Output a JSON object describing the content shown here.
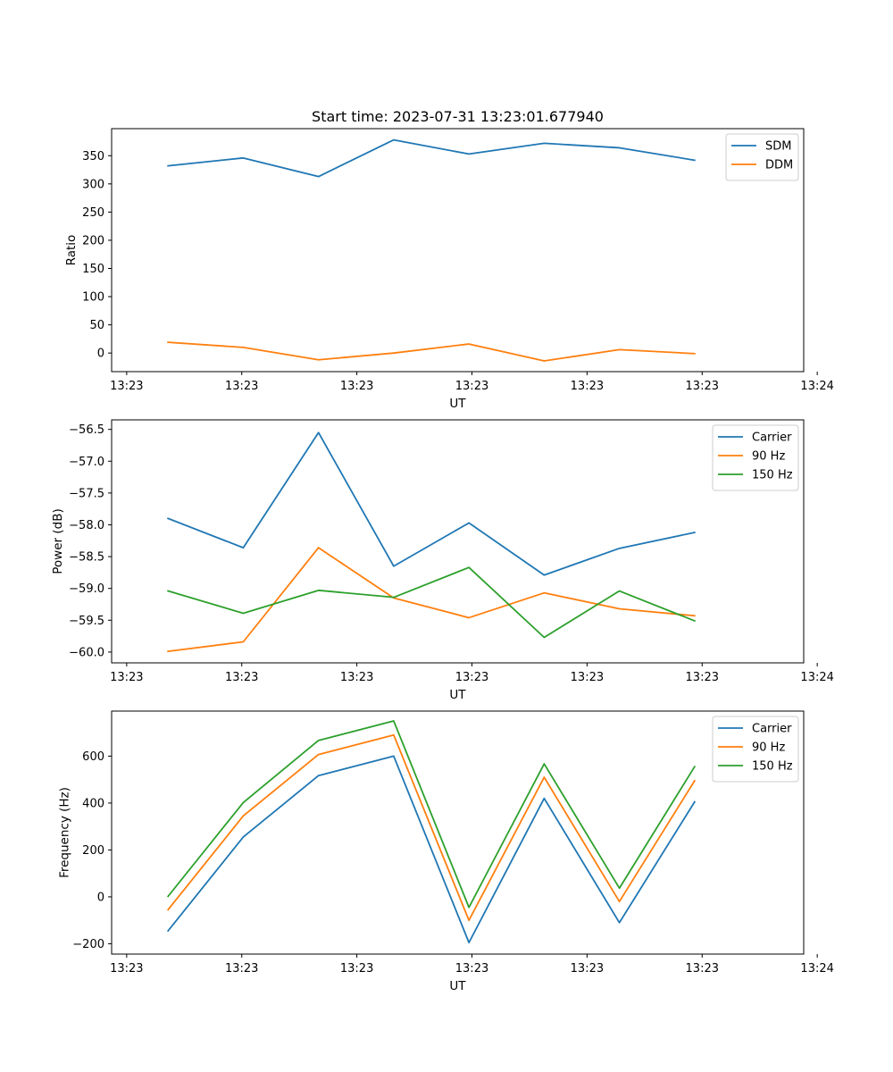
{
  "figure": {
    "title": "Start time: 2023-07-31 13:23:01.677940"
  },
  "chart_data": [
    {
      "type": "line",
      "xlabel": "UT",
      "ylabel": "Ratio",
      "x": [
        1,
        2,
        3,
        4,
        5,
        6,
        7,
        8
      ],
      "xlim": [
        0.25,
        9.45
      ],
      "x_ticks": [
        0.45,
        1.98,
        3.51,
        5.04,
        6.57,
        8.1,
        9.63
      ],
      "x_tick_labels": [
        "13:23",
        "13:23",
        "13:23",
        "13:23",
        "13:23",
        "13:23",
        "13:24"
      ],
      "ylim": [
        -33,
        398
      ],
      "y_ticks": [
        0,
        50,
        100,
        150,
        200,
        250,
        300,
        350
      ],
      "y_tick_labels": [
        "0",
        "50",
        "100",
        "150",
        "200",
        "250",
        "300",
        "350"
      ],
      "legend_position": "top-right",
      "series": [
        {
          "name": "SDM",
          "color": "#1f77b4",
          "values": [
            332,
            346,
            313,
            378,
            353,
            372,
            364,
            342
          ]
        },
        {
          "name": "DDM",
          "color": "#ff7f0e",
          "values": [
            19,
            10,
            -12,
            0,
            16,
            -14,
            6,
            -1
          ]
        }
      ]
    },
    {
      "type": "line",
      "xlabel": "UT",
      "ylabel": "Power (dB)",
      "x": [
        1,
        2,
        3,
        4,
        5,
        6,
        7,
        8
      ],
      "xlim": [
        0.25,
        9.45
      ],
      "x_ticks": [
        0.45,
        1.98,
        3.51,
        5.04,
        6.57,
        8.1,
        9.63
      ],
      "x_tick_labels": [
        "13:23",
        "13:23",
        "13:23",
        "13:23",
        "13:23",
        "13:23",
        "13:24"
      ],
      "ylim": [
        -60.17,
        -56.35
      ],
      "y_ticks": [
        -60.0,
        -59.5,
        -59.0,
        -58.5,
        -58.0,
        -57.5,
        -57.0,
        -56.5
      ],
      "y_tick_labels": [
        "−60.0",
        "−59.5",
        "−59.0",
        "−58.5",
        "−58.0",
        "−57.5",
        "−57.0",
        "−56.5"
      ],
      "legend_position": "top-right",
      "series": [
        {
          "name": "Carrier",
          "color": "#1f77b4",
          "values": [
            -57.9,
            -58.36,
            -56.55,
            -58.65,
            -57.97,
            -58.79,
            -58.37,
            -58.12
          ]
        },
        {
          "name": "90 Hz",
          "color": "#ff7f0e",
          "values": [
            -59.99,
            -59.84,
            -58.36,
            -59.15,
            -59.46,
            -59.07,
            -59.32,
            -59.43
          ]
        },
        {
          "name": "150 Hz",
          "color": "#2ca02c",
          "values": [
            -59.04,
            -59.39,
            -59.03,
            -59.14,
            -58.67,
            -59.77,
            -59.04,
            -59.51
          ]
        }
      ]
    },
    {
      "type": "line",
      "xlabel": "UT",
      "ylabel": "Frequency (Hz)",
      "x": [
        1,
        2,
        3,
        4,
        5,
        6,
        7,
        8
      ],
      "xlim": [
        0.25,
        9.45
      ],
      "x_ticks": [
        0.45,
        1.98,
        3.51,
        5.04,
        6.57,
        8.1,
        9.63
      ],
      "x_tick_labels": [
        "13:23",
        "13:23",
        "13:23",
        "13:23",
        "13:23",
        "13:23",
        "13:24"
      ],
      "ylim": [
        -244,
        792
      ],
      "y_ticks": [
        -200,
        0,
        200,
        400,
        600
      ],
      "y_tick_labels": [
        "−200",
        "0",
        "200",
        "400",
        "600"
      ],
      "legend_position": "top-right",
      "series": [
        {
          "name": "Carrier",
          "color": "#1f77b4",
          "values": [
            -145,
            255,
            517,
            600,
            -195,
            420,
            -110,
            405
          ]
        },
        {
          "name": "90 Hz",
          "color": "#ff7f0e",
          "values": [
            -55,
            345,
            607,
            690,
            -100,
            510,
            -20,
            495
          ]
        },
        {
          "name": "150 Hz",
          "color": "#2ca02c",
          "values": [
            2,
            402,
            667,
            750,
            -45,
            567,
            37,
            555
          ]
        }
      ]
    }
  ]
}
